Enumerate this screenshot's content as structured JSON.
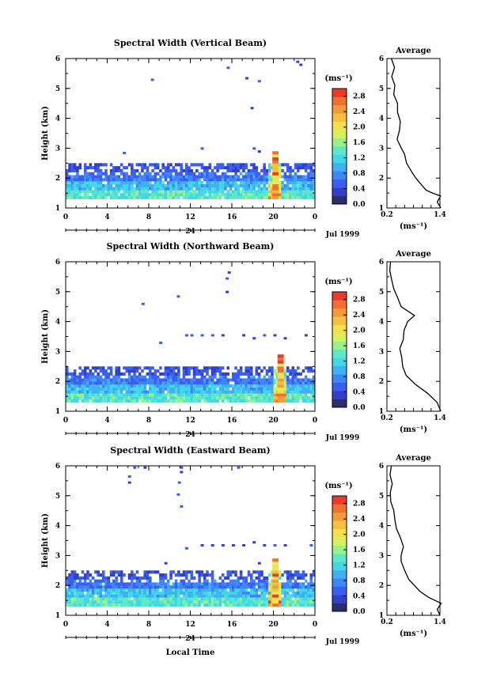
{
  "date_label": "Jul 1999",
  "day_label": "24",
  "xlabel_bottom": "Local Time",
  "colorbar_unit": "(ms⁻¹)",
  "colorbar_ticks": [
    "0.0",
    "0.4",
    "0.8",
    "1.2",
    "1.6",
    "2.0",
    "2.4",
    "2.8"
  ],
  "x_ticks": [
    "0",
    "4",
    "8",
    "12",
    "16",
    "20",
    "0"
  ],
  "y_ticks": [
    "1",
    "2",
    "3",
    "4",
    "5",
    "6"
  ],
  "avg_x_ticks": [
    "0.2",
    "1.4"
  ],
  "avg_title": "Average",
  "avg_xlabel": "(ms⁻¹)",
  "ylabel": "Height (km)",
  "colors": {
    "scale": [
      "#2b2d6e",
      "#3040c8",
      "#3c5ef0",
      "#3f86f5",
      "#40b0f2",
      "#40d8e8",
      "#5fe8c8",
      "#9af08a",
      "#d8f05a",
      "#f5e050",
      "#f5c040",
      "#f59a38",
      "#f07030",
      "#e83b2a"
    ]
  },
  "chart_data": [
    {
      "type": "heatmap",
      "title": "Spectral Width (Vertical Beam)",
      "xlabel": "",
      "ylabel": "Height (km)",
      "xlim": [
        0,
        24
      ],
      "ylim": [
        1,
        6
      ],
      "colorbar_range": [
        0.0,
        3.0
      ],
      "main_layer_top_km": 2.5,
      "scattered_echoes": [
        [
          22.2,
          5.85
        ],
        [
          22.5,
          5.75
        ],
        [
          15.5,
          5.65
        ],
        [
          8.2,
          5.25
        ],
        [
          17.3,
          5.3
        ],
        [
          18.5,
          5.2
        ],
        [
          17.8,
          4.3
        ],
        [
          13.0,
          2.95
        ],
        [
          18.0,
          2.95
        ],
        [
          18.5,
          2.85
        ],
        [
          5.5,
          2.8
        ]
      ],
      "spike_time_h": 20.0,
      "average_profile": {
        "xlim": [
          0.2,
          1.4
        ],
        "height_km": [
          1.0,
          1.2,
          1.4,
          1.5,
          1.6,
          1.8,
          2.0,
          2.2,
          2.5,
          2.8,
          3.0,
          3.3,
          3.6,
          3.9,
          4.2,
          4.5,
          4.8,
          5.1,
          5.4,
          5.7,
          6.0
        ],
        "width_ms": [
          1.42,
          1.35,
          1.42,
          1.25,
          1.1,
          0.98,
          0.88,
          0.78,
          0.65,
          0.58,
          0.52,
          0.45,
          0.5,
          0.48,
          0.42,
          0.45,
          0.35,
          0.4,
          0.3,
          0.35,
          0.3
        ]
      }
    },
    {
      "type": "heatmap",
      "title": "Spectral Width (Northward Beam)",
      "xlabel": "",
      "ylabel": "Height (km)",
      "xlim": [
        0,
        24
      ],
      "ylim": [
        1,
        6
      ],
      "colorbar_range": [
        0.0,
        3.0
      ],
      "main_layer_top_km": 2.5,
      "scattered_echoes": [
        [
          15.6,
          5.6
        ],
        [
          15.4,
          5.4
        ],
        [
          10.7,
          4.8
        ],
        [
          7.3,
          4.55
        ],
        [
          15.4,
          4.95
        ],
        [
          9.0,
          3.25
        ],
        [
          11.5,
          3.5
        ],
        [
          12.0,
          3.5
        ],
        [
          13.0,
          3.5
        ],
        [
          14.0,
          3.5
        ],
        [
          15.0,
          3.5
        ],
        [
          17.0,
          3.5
        ],
        [
          18.0,
          3.4
        ],
        [
          19.0,
          3.5
        ],
        [
          20.0,
          3.5
        ],
        [
          21.0,
          3.4
        ],
        [
          23.0,
          3.5
        ]
      ],
      "spike_time_h": 20.5,
      "average_profile": {
        "xlim": [
          0.2,
          1.4
        ],
        "height_km": [
          1.0,
          1.3,
          1.6,
          1.9,
          2.2,
          2.5,
          2.8,
          3.1,
          3.4,
          3.7,
          4.0,
          4.2,
          4.5,
          4.8,
          5.1,
          5.4,
          5.7,
          6.0
        ],
        "width_ms": [
          1.42,
          1.35,
          1.1,
          0.85,
          0.62,
          0.58,
          0.55,
          0.5,
          0.55,
          0.6,
          0.68,
          0.8,
          0.5,
          0.42,
          0.35,
          0.3,
          0.25,
          0.28
        ]
      }
    },
    {
      "type": "heatmap",
      "title": "Spectral Width (Eastward Beam)",
      "xlabel": "Local Time",
      "ylabel": "Height (km)",
      "xlim": [
        0,
        24
      ],
      "ylim": [
        1,
        6
      ],
      "colorbar_range": [
        0.0,
        3.0
      ],
      "main_layer_top_km": 2.5,
      "scattered_echoes": [
        [
          6.5,
          5.9
        ],
        [
          7.5,
          5.9
        ],
        [
          11.0,
          5.9
        ],
        [
          16.5,
          5.9
        ],
        [
          6.0,
          5.6
        ],
        [
          6.0,
          5.4
        ],
        [
          11.0,
          5.75
        ],
        [
          10.8,
          5.4
        ],
        [
          10.7,
          5.0
        ],
        [
          11.0,
          4.6
        ],
        [
          11.5,
          3.2
        ],
        [
          13.0,
          3.3
        ],
        [
          14.0,
          3.3
        ],
        [
          15.0,
          3.3
        ],
        [
          16.0,
          3.3
        ],
        [
          17.0,
          3.3
        ],
        [
          18.0,
          3.4
        ],
        [
          19.0,
          3.3
        ],
        [
          20.0,
          3.3
        ],
        [
          21.0,
          3.3
        ],
        [
          23.5,
          3.3
        ],
        [
          9.5,
          2.7
        ],
        [
          18.5,
          2.7
        ]
      ],
      "spike_time_h": 20.0,
      "average_profile": {
        "xlim": [
          0.2,
          1.4
        ],
        "height_km": [
          1.0,
          1.2,
          1.4,
          1.6,
          1.8,
          2.0,
          2.2,
          2.5,
          2.8,
          3.0,
          3.3,
          3.6,
          3.9,
          4.2,
          4.5,
          4.8,
          5.1,
          5.4,
          5.7,
          6.0
        ],
        "width_ms": [
          1.4,
          1.35,
          1.42,
          1.15,
          0.95,
          0.8,
          0.7,
          0.6,
          0.52,
          0.5,
          0.55,
          0.48,
          0.42,
          0.4,
          0.35,
          0.3,
          0.28,
          0.3,
          0.25,
          0.3
        ]
      }
    }
  ]
}
